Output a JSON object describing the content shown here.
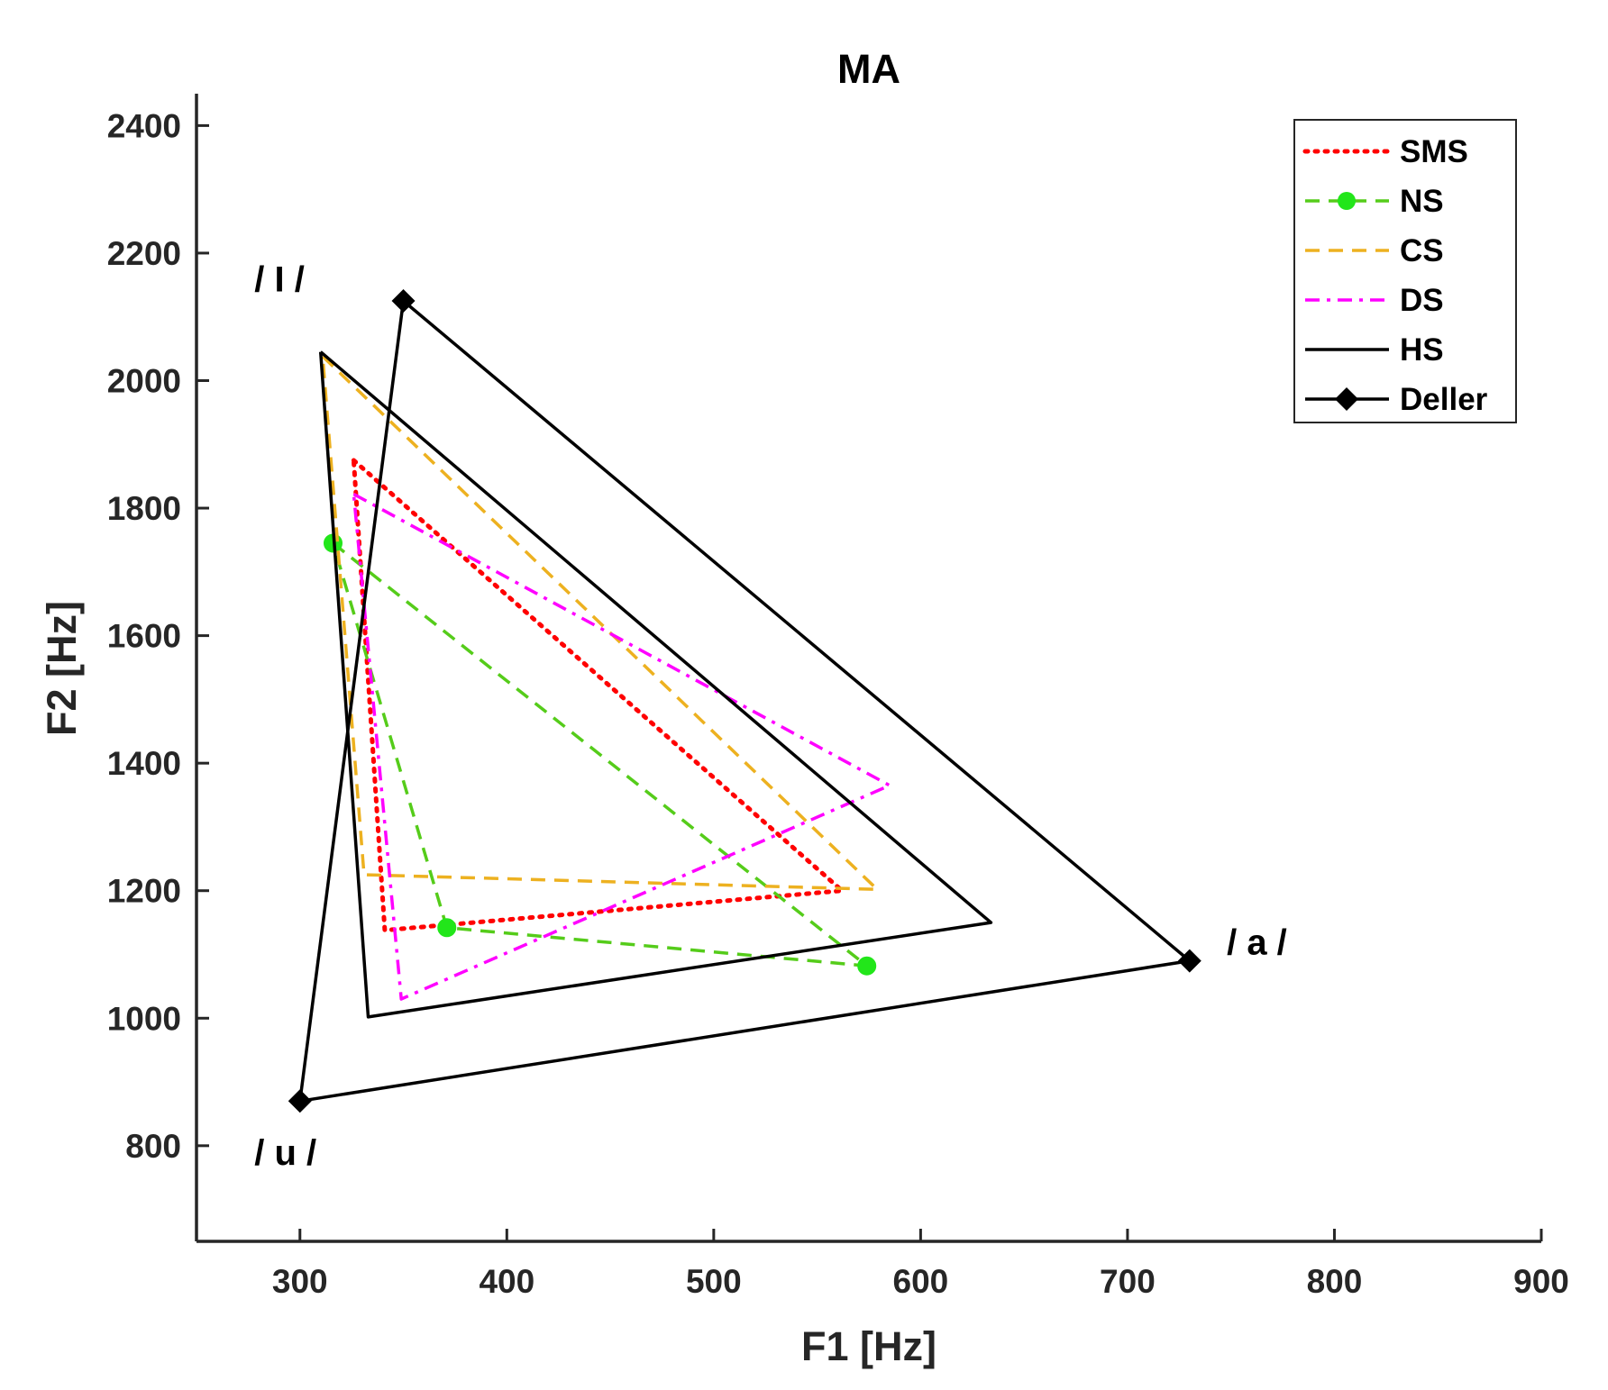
{
  "chart_data": {
    "type": "line",
    "title": "MA",
    "xlabel": "F1 [Hz]",
    "ylabel": "F2 [Hz]",
    "xlim": [
      250,
      900
    ],
    "ylim": [
      650,
      2450
    ],
    "xticks": [
      300,
      400,
      500,
      600,
      700,
      800,
      900
    ],
    "yticks": [
      800,
      1000,
      1200,
      1400,
      1600,
      1800,
      2000,
      2200,
      2400
    ],
    "grid": false,
    "legend_position": "top-right",
    "series": [
      {
        "name": "SMS",
        "color": "#ff0000",
        "style": "dotted",
        "marker": "none",
        "x": [
          326,
          562,
          341,
          326
        ],
        "y": [
          1875,
          1200,
          1138,
          1875
        ]
      },
      {
        "name": "NS",
        "color": "#55cc1a",
        "style": "dashed",
        "marker": "circle",
        "x": [
          316,
          574,
          371,
          316
        ],
        "y": [
          1745,
          1082,
          1142,
          1745
        ]
      },
      {
        "name": "CS",
        "color": "#edb120",
        "style": "dashed",
        "marker": "none",
        "x": [
          311,
          579,
          331,
          311
        ],
        "y": [
          2038,
          1202,
          1225,
          2038
        ]
      },
      {
        "name": "DS",
        "color": "#ff00ff",
        "style": "dashdot",
        "marker": "none",
        "x": [
          326,
          585,
          349,
          326
        ],
        "y": [
          1822,
          1365,
          1030,
          1822
        ]
      },
      {
        "name": "HS",
        "color": "#000000",
        "style": "solid",
        "marker": "none",
        "x": [
          310,
          634,
          333,
          310
        ],
        "y": [
          2045,
          1150,
          1002,
          2045
        ]
      },
      {
        "name": "Deller",
        "color": "#000000",
        "style": "solid",
        "marker": "diamond",
        "x": [
          350,
          730,
          300,
          350
        ],
        "y": [
          2125,
          1090,
          870,
          2125
        ]
      }
    ],
    "annotations": [
      {
        "text": "/ I /",
        "x": 278,
        "y": 2140
      },
      {
        "text": "/ a /",
        "x": 748,
        "y": 1100
      },
      {
        "text": "/ u /",
        "x": 278,
        "y": 770
      }
    ]
  }
}
